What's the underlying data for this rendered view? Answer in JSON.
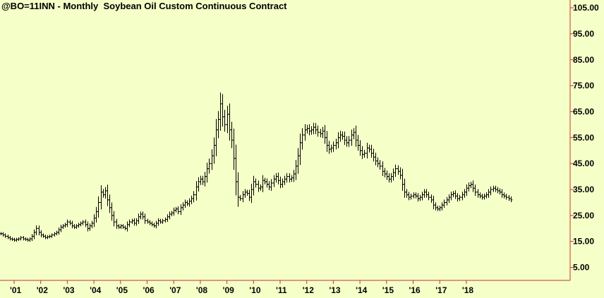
{
  "chart_data": {
    "type": "ohlc",
    "title": "@BO=11INN - Monthly  Soybean Oil Custom Continuous Contract",
    "xlabel": "",
    "ylabel": "",
    "ylim": [
      0,
      108
    ],
    "y_ticks": [
      "105.00",
      "95.00",
      "85.00",
      "75.00",
      "65.00",
      "55.00",
      "45.00",
      "35.00",
      "25.00",
      "15.00",
      "5.00"
    ],
    "y_tick_values": [
      105,
      95,
      85,
      75,
      65,
      55,
      45,
      35,
      25,
      15,
      5
    ],
    "x_ticks": [
      "'01",
      "'02",
      "'03",
      "'04",
      "'05",
      "'06",
      "'07",
      "'08",
      "'09",
      "'10",
      "'11",
      "'12",
      "'13",
      "'14",
      "'15",
      "'16",
      "'17",
      "'18"
    ],
    "x_tick_years": [
      2001,
      2002,
      2003,
      2004,
      2005,
      2006,
      2007,
      2008,
      2009,
      2010,
      2011,
      2012,
      2013,
      2014,
      2015,
      2016,
      2017,
      2018
    ],
    "start": "2000-07",
    "end": "2018-06",
    "closes": [
      18.0,
      17.5,
      17.0,
      16.5,
      16.0,
      15.8,
      15.5,
      15.8,
      16.0,
      16.5,
      16.0,
      15.8,
      15.5,
      16.0,
      17.0,
      18.5,
      20.0,
      18.5,
      17.5,
      17.0,
      16.5,
      16.8,
      17.0,
      17.5,
      18.0,
      18.5,
      19.5,
      20.5,
      21.0,
      21.5,
      22.5,
      22.0,
      21.0,
      20.5,
      21.0,
      21.5,
      22.0,
      22.5,
      21.5,
      20.0,
      21.0,
      22.0,
      24.0,
      26.5,
      30.0,
      34.0,
      33.0,
      34.5,
      31.0,
      28.0,
      25.0,
      22.5,
      21.0,
      20.5,
      21.0,
      20.5,
      20.0,
      21.5,
      22.5,
      23.0,
      22.0,
      23.0,
      24.5,
      25.5,
      24.5,
      23.0,
      22.5,
      22.0,
      21.5,
      21.0,
      22.0,
      23.0,
      22.5,
      23.0,
      23.5,
      24.5,
      25.5,
      26.0,
      27.0,
      27.5,
      26.5,
      28.0,
      29.0,
      30.0,
      29.5,
      30.5,
      31.5,
      33.0,
      36.0,
      38.0,
      39.0,
      38.0,
      40.0,
      43.0,
      45.0,
      48.0,
      52.0,
      58.0,
      62.0,
      68.0,
      63.0,
      60.0,
      64.0,
      58.0,
      54.0,
      47.0,
      38.0,
      32.0,
      31.5,
      33.0,
      34.0,
      33.5,
      32.0,
      35.0,
      38.0,
      37.0,
      35.5,
      36.0,
      38.5,
      38.0,
      37.0,
      36.0,
      37.5,
      39.0,
      40.0,
      38.5,
      37.0,
      38.0,
      39.0,
      40.0,
      39.0,
      39.5,
      41.0,
      44.0,
      48.0,
      53.0,
      56.0,
      58.0,
      58.5,
      57.5,
      58.0,
      59.0,
      58.0,
      57.0,
      56.5,
      57.5,
      55.0,
      52.0,
      50.5,
      51.0,
      52.0,
      53.0,
      55.0,
      56.0,
      55.5,
      54.0,
      53.0,
      54.0,
      56.0,
      57.0,
      54.0,
      52.0,
      50.0,
      48.5,
      49.0,
      51.0,
      50.5,
      49.0,
      47.5,
      46.0,
      45.0,
      44.0,
      42.0,
      41.0,
      40.0,
      39.0,
      40.0,
      41.5,
      43.0,
      42.0,
      40.5,
      37.0,
      34.0,
      33.0,
      32.0,
      32.5,
      33.0,
      32.5,
      31.5,
      32.0,
      33.0,
      34.0,
      33.0,
      32.0,
      31.0,
      29.0,
      28.0,
      27.5,
      28.0,
      29.0,
      30.0,
      31.0,
      32.0,
      33.0,
      33.5,
      32.5,
      31.5,
      32.0,
      33.0,
      34.0,
      35.5,
      36.5,
      37.0,
      35.5,
      34.0,
      33.0,
      32.5,
      32.0,
      32.5,
      33.0,
      34.0,
      35.0,
      35.5,
      35.0,
      34.5,
      34.0,
      33.0,
      32.5,
      32.0,
      31.5,
      31.0
    ]
  }
}
